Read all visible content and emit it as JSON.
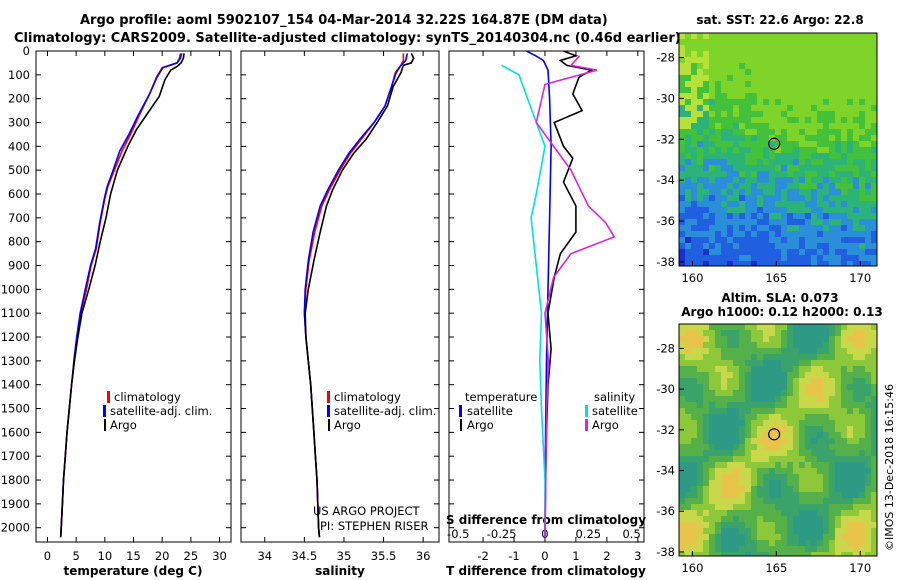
{
  "header": {
    "line1": "Argo profile: aoml 5902107_154 04-Mar-2014 32.22S 164.87E (DM data)",
    "line2": "Climatology: CARS2009. Satellite-adjusted climatology: synTS_20140304.nc (0.46d earlier)"
  },
  "credit": {
    "project": "US ARGO PROJECT",
    "pi": "PI: STEPHEN RISER",
    "stamp": "©IMOS 13-Dec-2018 16:15:46"
  },
  "colors": {
    "climatology": "#ff0000",
    "satellite": "#0000ff",
    "argo": "#000000",
    "diff_satellite_s": "#00e0e0",
    "diff_argo_s": "#e020e0"
  },
  "chart_data": [
    {
      "id": "temperature",
      "type": "line",
      "xlabel": "temperature (deg C)",
      "ylabel": "",
      "xlim": [
        -2,
        32
      ],
      "ylim": [
        2060,
        0
      ],
      "xticks": [
        0,
        5,
        10,
        15,
        20,
        25,
        30
      ],
      "yticks": [
        0,
        100,
        200,
        300,
        400,
        500,
        600,
        700,
        800,
        900,
        1000,
        1100,
        1200,
        1300,
        1400,
        1500,
        1600,
        1700,
        1800,
        1900,
        2000
      ],
      "legend": [
        "climatology",
        "satellite-adj. clim.",
        "Argo"
      ],
      "series": [
        {
          "name": "climatology",
          "color": "#ff0000",
          "points": [
            [
              23.2,
              10
            ],
            [
              23,
              30
            ],
            [
              22.6,
              50
            ],
            [
              20,
              70
            ],
            [
              19,
              110
            ],
            [
              17.8,
              180
            ],
            [
              16,
              270
            ],
            [
              14.5,
              350
            ],
            [
              13,
              420
            ],
            [
              11.5,
              510
            ],
            [
              10.5,
              570
            ],
            [
              10,
              620
            ],
            [
              9.2,
              720
            ],
            [
              8.5,
              830
            ],
            [
              7.6,
              900
            ],
            [
              6.8,
              1000
            ],
            [
              5.8,
              1100
            ],
            [
              5.2,
              1200
            ],
            [
              4.7,
              1300
            ],
            [
              4.2,
              1400
            ],
            [
              3.8,
              1500
            ],
            [
              3.4,
              1600
            ],
            [
              3.1,
              1700
            ],
            [
              2.8,
              1800
            ],
            [
              2.6,
              1900
            ],
            [
              2.4,
              2000
            ],
            [
              2.3,
              2040
            ]
          ]
        },
        {
          "name": "satellite-adj. clim.",
          "color": "#0000ff",
          "points": [
            [
              23.4,
              10
            ],
            [
              23.2,
              30
            ],
            [
              22.6,
              50
            ],
            [
              20.1,
              70
            ],
            [
              19.1,
              110
            ],
            [
              17.8,
              180
            ],
            [
              15.8,
              270
            ],
            [
              14.2,
              350
            ],
            [
              12.6,
              420
            ],
            [
              11.3,
              510
            ],
            [
              10.4,
              570
            ],
            [
              9.9,
              620
            ],
            [
              9.1,
              720
            ],
            [
              8.4,
              830
            ],
            [
              7.5,
              900
            ],
            [
              6.6,
              1000
            ],
            [
              5.7,
              1100
            ],
            [
              5.1,
              1200
            ],
            [
              4.6,
              1300
            ],
            [
              4.2,
              1400
            ],
            [
              3.8,
              1500
            ],
            [
              3.4,
              1600
            ],
            [
              3.1,
              1700
            ],
            [
              2.8,
              1800
            ],
            [
              2.6,
              1900
            ],
            [
              2.4,
              2000
            ],
            [
              2.3,
              2040
            ]
          ]
        },
        {
          "name": "Argo",
          "color": "#000000",
          "points": [
            [
              23.8,
              10
            ],
            [
              23.7,
              30
            ],
            [
              23.3,
              50
            ],
            [
              22.6,
              65
            ],
            [
              21.5,
              80
            ],
            [
              20.5,
              120
            ],
            [
              19.5,
              190
            ],
            [
              17.5,
              260
            ],
            [
              15.5,
              330
            ],
            [
              14,
              400
            ],
            [
              12.2,
              500
            ],
            [
              11,
              600
            ],
            [
              10.2,
              700
            ],
            [
              9.2,
              800
            ],
            [
              8.3,
              900
            ],
            [
              7.2,
              1000
            ],
            [
              6,
              1100
            ],
            [
              5.3,
              1200
            ],
            [
              4.7,
              1300
            ],
            [
              4.2,
              1400
            ],
            [
              3.8,
              1500
            ],
            [
              3.4,
              1600
            ],
            [
              3.1,
              1700
            ],
            [
              2.8,
              1800
            ],
            [
              2.6,
              1900
            ],
            [
              2.4,
              2000
            ],
            [
              2.3,
              2040
            ]
          ]
        }
      ]
    },
    {
      "id": "salinity",
      "type": "line",
      "xlabel": "salinity",
      "xlim": [
        33.7,
        36.2
      ],
      "ylim": [
        2060,
        0
      ],
      "xticks": [
        34,
        34.5,
        35,
        35.5,
        36
      ],
      "legend": [
        "climatology",
        "satellite-adj. clim.",
        "Argo"
      ],
      "series": [
        {
          "name": "climatology",
          "color": "#ff0000",
          "points": [
            [
              35.75,
              10
            ],
            [
              35.75,
              40
            ],
            [
              35.72,
              60
            ],
            [
              35.65,
              90
            ],
            [
              35.6,
              150
            ],
            [
              35.52,
              230
            ],
            [
              35.38,
              300
            ],
            [
              35.22,
              370
            ],
            [
              35.08,
              430
            ],
            [
              34.95,
              500
            ],
            [
              34.82,
              580
            ],
            [
              34.72,
              650
            ],
            [
              34.63,
              760
            ],
            [
              34.56,
              880
            ],
            [
              34.52,
              1000
            ],
            [
              34.5,
              1100
            ],
            [
              34.52,
              1200
            ],
            [
              34.55,
              1300
            ],
            [
              34.58,
              1400
            ],
            [
              34.6,
              1500
            ],
            [
              34.62,
              1600
            ],
            [
              34.64,
              1700
            ],
            [
              34.66,
              1800
            ],
            [
              34.67,
              1900
            ],
            [
              34.68,
              2000
            ],
            [
              34.69,
              2040
            ]
          ]
        },
        {
          "name": "satellite-adj. clim.",
          "color": "#0000ff",
          "points": [
            [
              35.8,
              10
            ],
            [
              35.78,
              40
            ],
            [
              35.72,
              60
            ],
            [
              35.66,
              90
            ],
            [
              35.6,
              150
            ],
            [
              35.52,
              230
            ],
            [
              35.38,
              300
            ],
            [
              35.2,
              370
            ],
            [
              35.06,
              430
            ],
            [
              34.93,
              500
            ],
            [
              34.8,
              580
            ],
            [
              34.7,
              650
            ],
            [
              34.61,
              760
            ],
            [
              34.55,
              880
            ],
            [
              34.51,
              1000
            ],
            [
              34.5,
              1100
            ],
            [
              34.52,
              1200
            ],
            [
              34.55,
              1300
            ],
            [
              34.58,
              1400
            ],
            [
              34.6,
              1500
            ],
            [
              34.62,
              1600
            ],
            [
              34.64,
              1700
            ],
            [
              34.66,
              1800
            ],
            [
              34.67,
              1900
            ],
            [
              34.68,
              2000
            ],
            [
              34.69,
              2040
            ]
          ]
        },
        {
          "name": "Argo",
          "color": "#000000",
          "points": [
            [
              35.85,
              10
            ],
            [
              35.88,
              30
            ],
            [
              35.85,
              50
            ],
            [
              35.75,
              60
            ],
            [
              35.72,
              90
            ],
            [
              35.62,
              150
            ],
            [
              35.55,
              230
            ],
            [
              35.42,
              300
            ],
            [
              35.28,
              370
            ],
            [
              35.12,
              430
            ],
            [
              34.98,
              500
            ],
            [
              34.86,
              580
            ],
            [
              34.78,
              650
            ],
            [
              34.7,
              760
            ],
            [
              34.62,
              880
            ],
            [
              34.55,
              1000
            ],
            [
              34.51,
              1100
            ],
            [
              34.52,
              1200
            ],
            [
              34.55,
              1300
            ],
            [
              34.58,
              1400
            ],
            [
              34.6,
              1500
            ],
            [
              34.62,
              1600
            ],
            [
              34.64,
              1700
            ],
            [
              34.66,
              1800
            ],
            [
              34.67,
              1900
            ],
            [
              34.68,
              2000
            ],
            [
              34.69,
              2040
            ]
          ]
        }
      ]
    },
    {
      "id": "difference",
      "type": "line",
      "xlabel": "T difference from climatology",
      "xlabel2": "S difference from climatology",
      "xlim": [
        -3.1,
        3.2
      ],
      "ylim": [
        2060,
        0
      ],
      "xticks": [
        -2,
        -1,
        0,
        1,
        2,
        3
      ],
      "xticks_s": [
        "-0.5",
        "-0.25",
        "0",
        "0.25",
        "0.5"
      ],
      "legend_temperature_title": "temperature",
      "legend_salinity_title": "salinity",
      "legend_temperature": [
        "satellite",
        "Argo"
      ],
      "legend_salinity": [
        "satellite",
        "Argo"
      ],
      "series": [
        {
          "name": "T satellite",
          "color": "#0000ff",
          "points": [
            [
              -0.6,
              0
            ],
            [
              -0.3,
              20
            ],
            [
              -0.05,
              40
            ],
            [
              0.1,
              80
            ],
            [
              0.15,
              200
            ],
            [
              0.2,
              400
            ],
            [
              0.15,
              700
            ],
            [
              0.1,
              1000
            ],
            [
              0.05,
              1300
            ],
            [
              0.02,
              1600
            ],
            [
              0,
              2040
            ]
          ]
        },
        {
          "name": "T Argo",
          "color": "#000000",
          "points": [
            [
              0.6,
              0
            ],
            [
              1.0,
              20
            ],
            [
              0.5,
              40
            ],
            [
              0.7,
              60
            ],
            [
              1.5,
              80
            ],
            [
              1.1,
              110
            ],
            [
              0.9,
              180
            ],
            [
              1.2,
              250
            ],
            [
              0.3,
              300
            ],
            [
              0.6,
              400
            ],
            [
              0.9,
              450
            ],
            [
              0.6,
              550
            ],
            [
              1.0,
              650
            ],
            [
              1.0,
              760
            ],
            [
              0.5,
              850
            ],
            [
              0.3,
              950
            ],
            [
              0.1,
              1100
            ],
            [
              0.2,
              1250
            ],
            [
              0.1,
              1400
            ],
            [
              0.05,
              1600
            ],
            [
              0.02,
              1800
            ],
            [
              0,
              2040
            ]
          ]
        },
        {
          "name": "S satellite",
          "color": "#00e0e0",
          "points": [
            [
              -0.25,
              60
            ],
            [
              -0.15,
              100
            ],
            [
              -0.1,
              200
            ],
            [
              0.0,
              400
            ],
            [
              -0.05,
              600
            ],
            [
              -0.08,
              700
            ],
            [
              -0.05,
              900
            ],
            [
              -0.02,
              1100
            ],
            [
              -0.03,
              1300
            ],
            [
              -0.02,
              1500
            ],
            [
              0,
              1800
            ],
            [
              0,
              2040
            ]
          ]
        },
        {
          "name": "S Argo",
          "color": "#e020e0",
          "points": [
            [
              0.2,
              20
            ],
            [
              0.15,
              60
            ],
            [
              0.3,
              80
            ],
            [
              0.0,
              140
            ],
            [
              -0.05,
              300
            ],
            [
              0.15,
              500
            ],
            [
              0.25,
              650
            ],
            [
              0.35,
              720
            ],
            [
              0.4,
              780
            ],
            [
              0.15,
              850
            ],
            [
              0.05,
              950
            ],
            [
              0.0,
              1100
            ],
            [
              0.02,
              1300
            ],
            [
              0.01,
              1500
            ],
            [
              0,
              2040
            ]
          ]
        }
      ]
    }
  ],
  "sst_map": {
    "title": "sat. SST: 22.6 Argo: 22.8",
    "lon_ticks": [
      "160",
      "165",
      "170"
    ],
    "lat_ticks": [
      "-28",
      "-30",
      "-32",
      "-34",
      "-36",
      "-38"
    ],
    "marker": {
      "lon": 164.87,
      "lat": -32.22
    }
  },
  "sla_map": {
    "title1": "Altim. SLA: 0.073",
    "title2": "Argo h1000: 0.12 h2000: 0.13",
    "lon_ticks": [
      "160",
      "165",
      "170"
    ],
    "lat_ticks": [
      "-28",
      "-30",
      "-32",
      "-34",
      "-36",
      "-38"
    ],
    "marker": {
      "lon": 164.87,
      "lat": -32.22
    }
  }
}
